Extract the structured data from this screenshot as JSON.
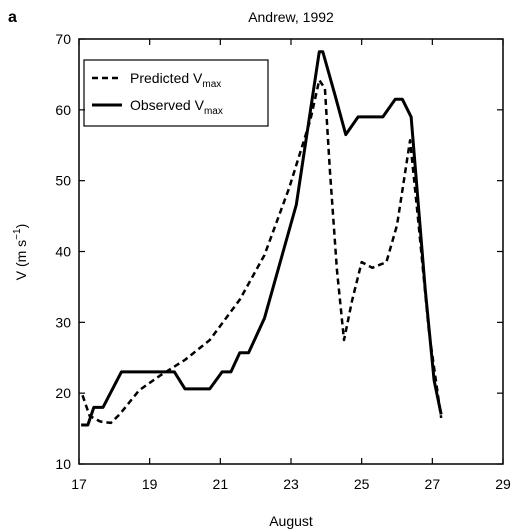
{
  "chart_data": {
    "type": "line",
    "panel_label": "a",
    "title": "Andrew, 1992",
    "x_label": "August",
    "y_label": "V (m s−1)",
    "xlim": [
      17,
      29
    ],
    "xticks": [
      17,
      19,
      21,
      23,
      25,
      27,
      29
    ],
    "ylim": [
      10,
      70
    ],
    "yticks": [
      10,
      20,
      30,
      40,
      50,
      60,
      70
    ],
    "legend": "upper left",
    "series": [
      {
        "name": "Predicted Vmax",
        "color": "#000000",
        "dash": true,
        "x": [
          17.1,
          17.3,
          17.6,
          17.9,
          18.15,
          18.7,
          19.3,
          20.0,
          20.7,
          21.55,
          22.25,
          22.95,
          23.55,
          23.8,
          23.96,
          24.1,
          24.3,
          24.5,
          24.73,
          25.0,
          25.3,
          25.7,
          26.0,
          26.37,
          26.6,
          26.9,
          27.25
        ],
        "values": [
          19.7,
          16.8,
          16,
          15.8,
          17,
          20.4,
          22.5,
          24.7,
          27.5,
          33.2,
          39.5,
          49,
          58.6,
          64.2,
          63,
          51.5,
          37.4,
          27.5,
          33.1,
          38.5,
          37.7,
          38.5,
          43.7,
          55.7,
          44.4,
          28.9,
          16.5
        ]
      },
      {
        "name": "Observed Vmax",
        "color": "#000000",
        "dash": false,
        "x": [
          17.06,
          17.25,
          17.42,
          17.68,
          18.2,
          19.7,
          20.0,
          20.7,
          21.05,
          21.3,
          21.55,
          21.8,
          22.25,
          23.15,
          23.8,
          23.9,
          24.25,
          24.55,
          24.9,
          25.6,
          25.95,
          26.15,
          26.4,
          26.8,
          27.05,
          27.25
        ],
        "values": [
          15.5,
          15.5,
          18,
          18,
          23,
          23,
          20.6,
          20.6,
          23,
          23,
          25.7,
          25.7,
          30.6,
          46.6,
          68.2,
          68.2,
          62,
          56.5,
          59,
          59,
          61.5,
          61.5,
          59,
          34.6,
          21.8,
          17
        ]
      }
    ]
  }
}
